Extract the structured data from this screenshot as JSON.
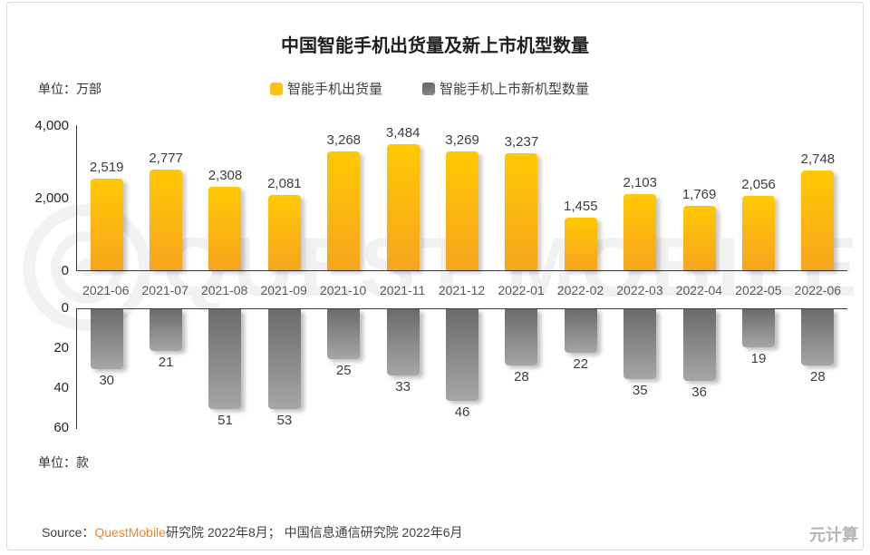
{
  "page": {
    "title": "中国智能手机出货量及新上市机型数量",
    "unit_top": "单位：万部",
    "unit_bottom": "单位：款",
    "source_prefix": "Source：",
    "source_brand": "QuestMobile",
    "source_rest": "研究院 2022年8月； 中国信息通信研究院 2022年6月",
    "corner_watermark": "元计算",
    "background_watermark": "QUEST MOBILE"
  },
  "legend": [
    {
      "label": "智能手机出货量",
      "color": "#FFC20E"
    },
    {
      "label": "智能手机上市新机型数量",
      "color": "#6B6B6B"
    }
  ],
  "chart_data": [
    {
      "type": "bar",
      "name": "智能手机出货量",
      "unit": "万部",
      "orientation": "up",
      "grid": false,
      "categories": [
        "2021-06",
        "2021-07",
        "2021-08",
        "2021-09",
        "2021-10",
        "2021-11",
        "2021-12",
        "2022-01",
        "2022-02",
        "2022-03",
        "2022-04",
        "2022-05",
        "2022-06"
      ],
      "values": [
        2519,
        2777,
        2308,
        2081,
        3268,
        3484,
        3269,
        3237,
        1455,
        2103,
        1769,
        2056,
        2748
      ],
      "ylim": [
        0,
        4000
      ],
      "yticks": [
        4000,
        2000,
        0
      ],
      "bar_gradient": [
        "#FFC903",
        "#F7A41E"
      ]
    },
    {
      "type": "bar",
      "name": "智能手机上市新机型数量",
      "unit": "款",
      "orientation": "down",
      "grid": false,
      "categories": [
        "2021-06",
        "2021-07",
        "2021-08",
        "2021-09",
        "2021-10",
        "2021-11",
        "2021-12",
        "2022-01",
        "2022-02",
        "2022-03",
        "2022-04",
        "2022-05",
        "2022-06"
      ],
      "values": [
        30,
        21,
        51,
        53,
        25,
        33,
        46,
        28,
        22,
        35,
        36,
        19,
        28
      ],
      "ylim": [
        0,
        60
      ],
      "yticks": [
        0,
        20,
        40,
        60
      ],
      "bar_gradient": [
        "#6B6B6B",
        "#A6A6A6"
      ]
    }
  ]
}
